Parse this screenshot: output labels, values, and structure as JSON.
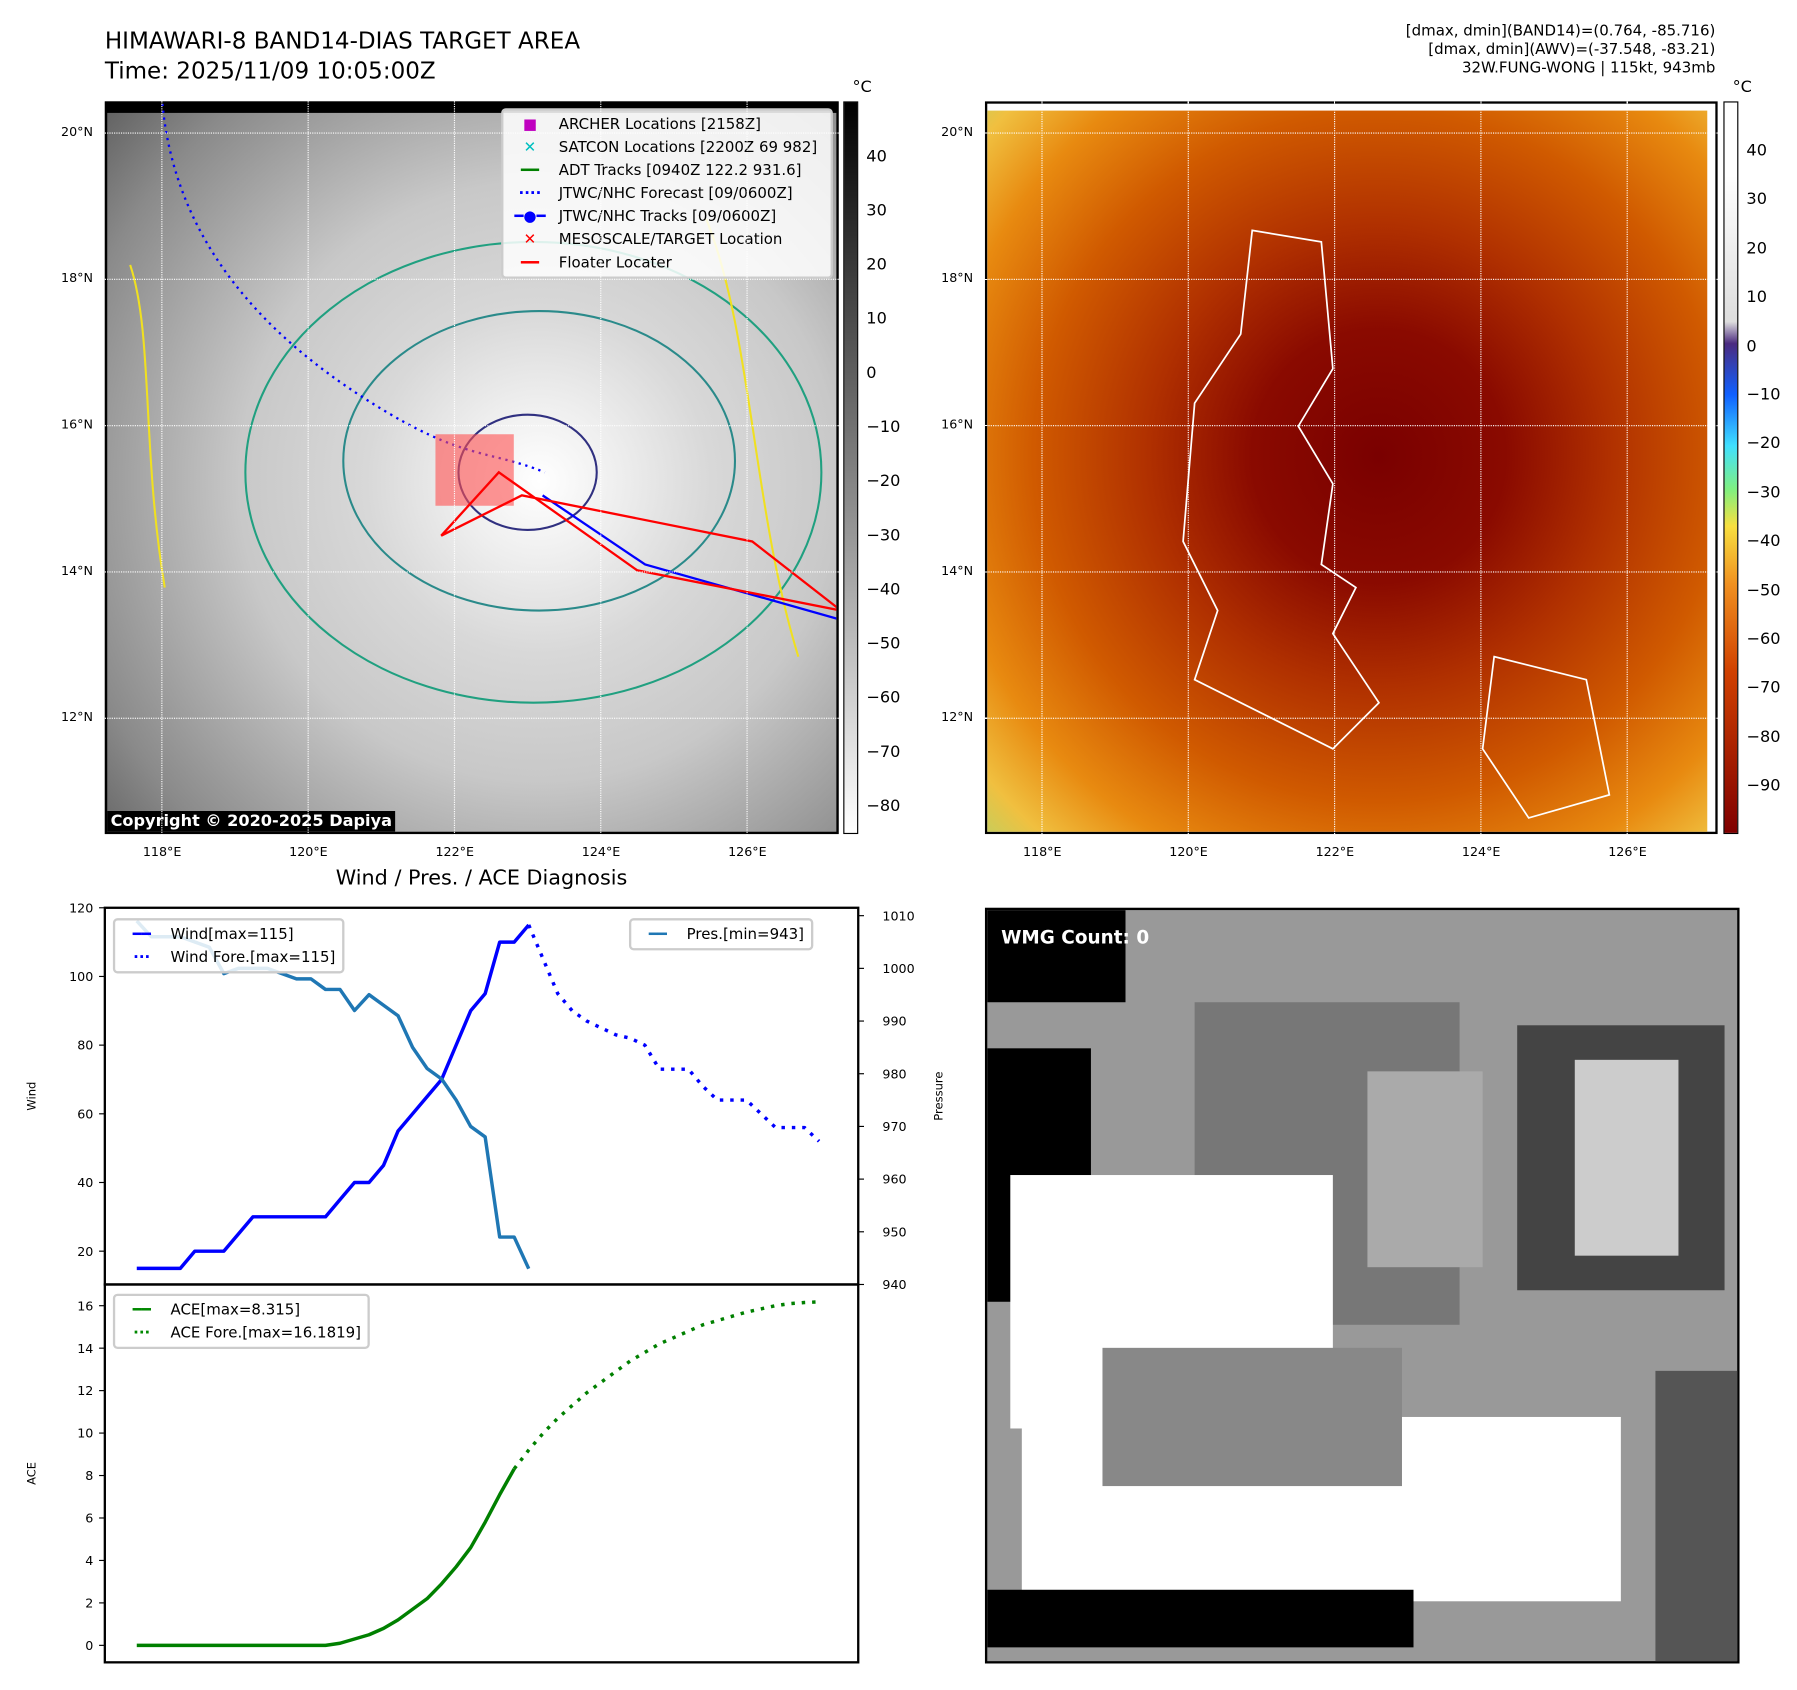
{
  "header": {
    "title": "HIMAWARI-8 BAND14-DIAS TARGET AREA",
    "time": "Time: 2025/11/09 10:05:00Z",
    "info": [
      "[dmax, dmin](BAND14)=(0.764, -85.716)",
      "[dmax, dmin](AWV)=(-37.548, -83.21)",
      "32W.FUNG-WONG | 115kt, 943mb"
    ]
  },
  "maps": {
    "lat_ticks": [
      "20°N",
      "18°N",
      "16°N",
      "14°N",
      "12°N"
    ],
    "lon_ticks": [
      "118°E",
      "120°E",
      "122°E",
      "124°E",
      "126°E"
    ],
    "unit": "°C",
    "copyright": "Copyright © 2020-2025 Dapiya",
    "legend": [
      {
        "label": "ARCHER Locations [2158Z]",
        "color": "#c000c0",
        "icon": "square-marker"
      },
      {
        "label": "SATCON Locations [2200Z 69 982]",
        "color": "#00c0c0",
        "icon": "x-marker"
      },
      {
        "label": "ADT Tracks [0940Z 122.2 931.6]",
        "color": "#008000",
        "icon": "solid-line"
      },
      {
        "label": "JTWC/NHC Forecast [09/0600Z]",
        "color": "#0000ff",
        "icon": "dotted-line"
      },
      {
        "label": "JTWC/NHC Tracks [09/0600Z]",
        "color": "#0000ff",
        "icon": "line-dot"
      },
      {
        "label": "MESOSCALE/TARGET Location",
        "color": "#ff0000",
        "icon": "x-marker"
      },
      {
        "label": "Floater Locater",
        "color": "#ff0000",
        "icon": "solid-line"
      }
    ],
    "cbar1_ticks": [
      "40",
      "30",
      "20",
      "10",
      "0",
      "−10",
      "−20",
      "−30",
      "−40",
      "−50",
      "−60",
      "−70",
      "−80"
    ],
    "cbar2_ticks": [
      "40",
      "30",
      "20",
      "10",
      "0",
      "−10",
      "−20",
      "−30",
      "−40",
      "−50",
      "−60",
      "−70",
      "−80",
      "−90"
    ]
  },
  "wmg": {
    "label": "WMG Count: 0"
  },
  "chart_data": {
    "type": "line",
    "title": "Wind / Pres. / ACE Diagnosis",
    "panels": [
      {
        "name": "wind-pressure",
        "ylabel": "Wind",
        "ylim": [
          10.3,
          120
        ],
        "yticks": [
          20,
          40,
          60,
          80,
          100,
          120
        ],
        "y2label": "Pressure",
        "y2lim": [
          940,
          1011.5
        ],
        "y2ticks": [
          940,
          950,
          960,
          970,
          980,
          990,
          1000,
          1010
        ],
        "series": [
          {
            "name": "Wind[max=115]",
            "axis": "left",
            "color": "#0000ff",
            "style": "solid",
            "x0": 0,
            "values": [
              15,
              15,
              15,
              15,
              20,
              20,
              20,
              25,
              30,
              30,
              30,
              30,
              30,
              30,
              35,
              40,
              40,
              45,
              55,
              60,
              65,
              70,
              80,
              90,
              95,
              110,
              110,
              115
            ]
          },
          {
            "name": "Wind Fore.[max=115]",
            "axis": "left",
            "color": "#0000ff",
            "style": "dotted",
            "x0": 27,
            "values": [
              115,
              105,
              95,
              90,
              87,
              85,
              83,
              82,
              80,
              73,
              73,
              73,
              68,
              64,
              64,
              64,
              60,
              56,
              56,
              56,
              52
            ]
          },
          {
            "name": "Pres.[min=943]",
            "axis": "right",
            "color": "#1f77b4",
            "style": "solid",
            "x0": 0,
            "values": [
              1009,
              1006,
              1006,
              1006,
              1005,
              1004,
              999,
              1000,
              1000,
              1000,
              999,
              998,
              998,
              996,
              996,
              992,
              995,
              993,
              991,
              985,
              981,
              979,
              975,
              970,
              968,
              949,
              949,
              943
            ]
          }
        ]
      },
      {
        "name": "ace",
        "ylabel": "ACE",
        "ylim": [
          -0.8,
          17
        ],
        "yticks": [
          0,
          2,
          4,
          6,
          8,
          10,
          12,
          14,
          16
        ],
        "series": [
          {
            "name": "ACE[max=8.315]",
            "axis": "left",
            "color": "#008000",
            "style": "solid",
            "x0": 0,
            "values": [
              0,
              0,
              0,
              0,
              0,
              0,
              0,
              0,
              0,
              0,
              0,
              0,
              0,
              0,
              0.1,
              0.3,
              0.5,
              0.8,
              1.2,
              1.7,
              2.2,
              2.9,
              3.7,
              4.6,
              5.8,
              7.1,
              8.315
            ]
          },
          {
            "name": "ACE Fore.[max=16.1819]",
            "axis": "left",
            "color": "#008000",
            "style": "dotted",
            "x0": 26,
            "values": [
              8.315,
              9.2,
              10,
              10.7,
              11.3,
              11.9,
              12.4,
              12.9,
              13.4,
              13.8,
              14.2,
              14.5,
              14.8,
              15.1,
              15.3,
              15.5,
              15.7,
              15.85,
              16.0,
              16.1,
              16.15,
              16.1819
            ]
          }
        ]
      }
    ],
    "xlim": [
      -2.2,
      49.7
    ]
  }
}
